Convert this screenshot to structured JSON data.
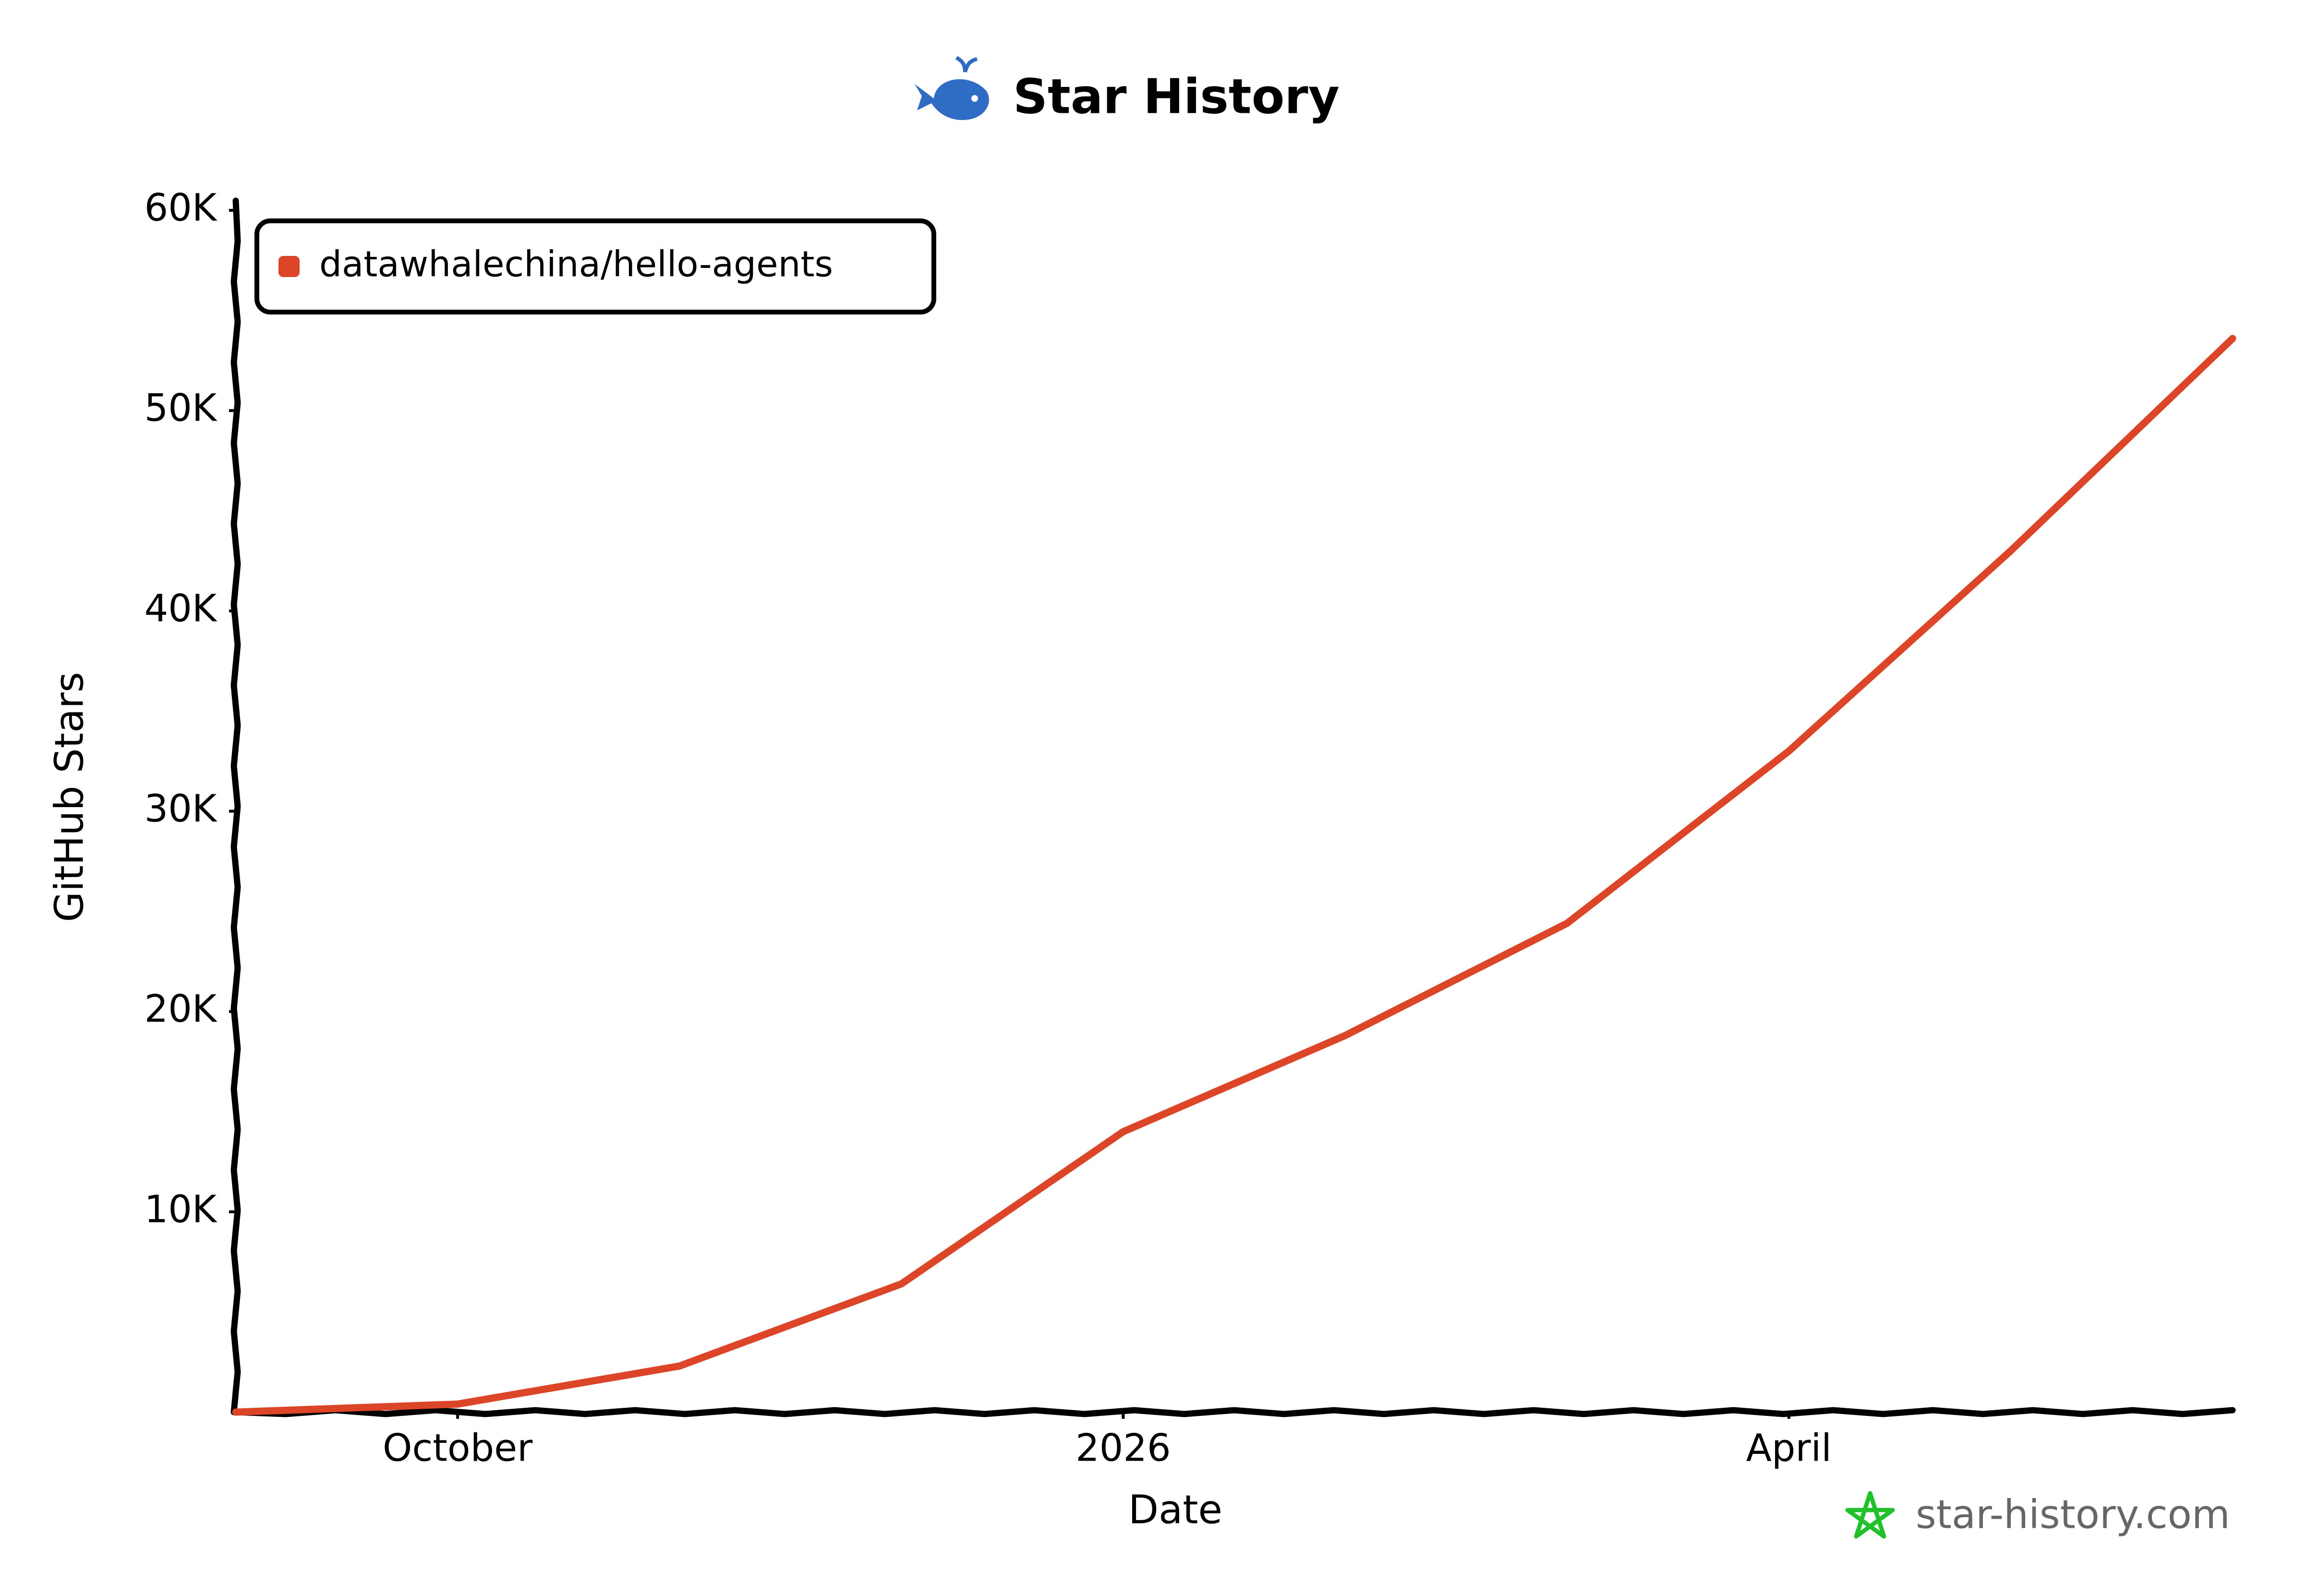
{
  "chart_data": {
    "type": "line",
    "title": "Star History",
    "x_label": "Date",
    "y_label": "GitHub Stars",
    "watermark": "star-history.com",
    "x": [
      "2025-09",
      "2025-10",
      "2025-11",
      "2025-12",
      "2026-01",
      "2026-02",
      "2026-03",
      "2026-04",
      "2026-05",
      "2026-06"
    ],
    "series": [
      {
        "name": "datawhalechina/hello-agents",
        "color": "#dd4528",
        "values": [
          0,
          400,
          2300,
          6400,
          14000,
          18800,
          24400,
          33000,
          43000,
          53600
        ]
      }
    ],
    "xlim": [
      "2025-09",
      "2026-06"
    ],
    "xticks": [
      {
        "value": "2025-10",
        "label": "October"
      },
      {
        "value": "2026-01",
        "label": "2026"
      },
      {
        "value": "2026-04",
        "label": "April"
      }
    ],
    "ylim": [
      0,
      60000
    ],
    "yticks": [
      {
        "value": 10000,
        "label": "10K"
      },
      {
        "value": 20000,
        "label": "20K"
      },
      {
        "value": 30000,
        "label": "30K"
      },
      {
        "value": 40000,
        "label": "40K"
      },
      {
        "value": 50000,
        "label": "50K"
      },
      {
        "value": 60000,
        "label": "60K"
      }
    ],
    "legend": "upper-left"
  }
}
